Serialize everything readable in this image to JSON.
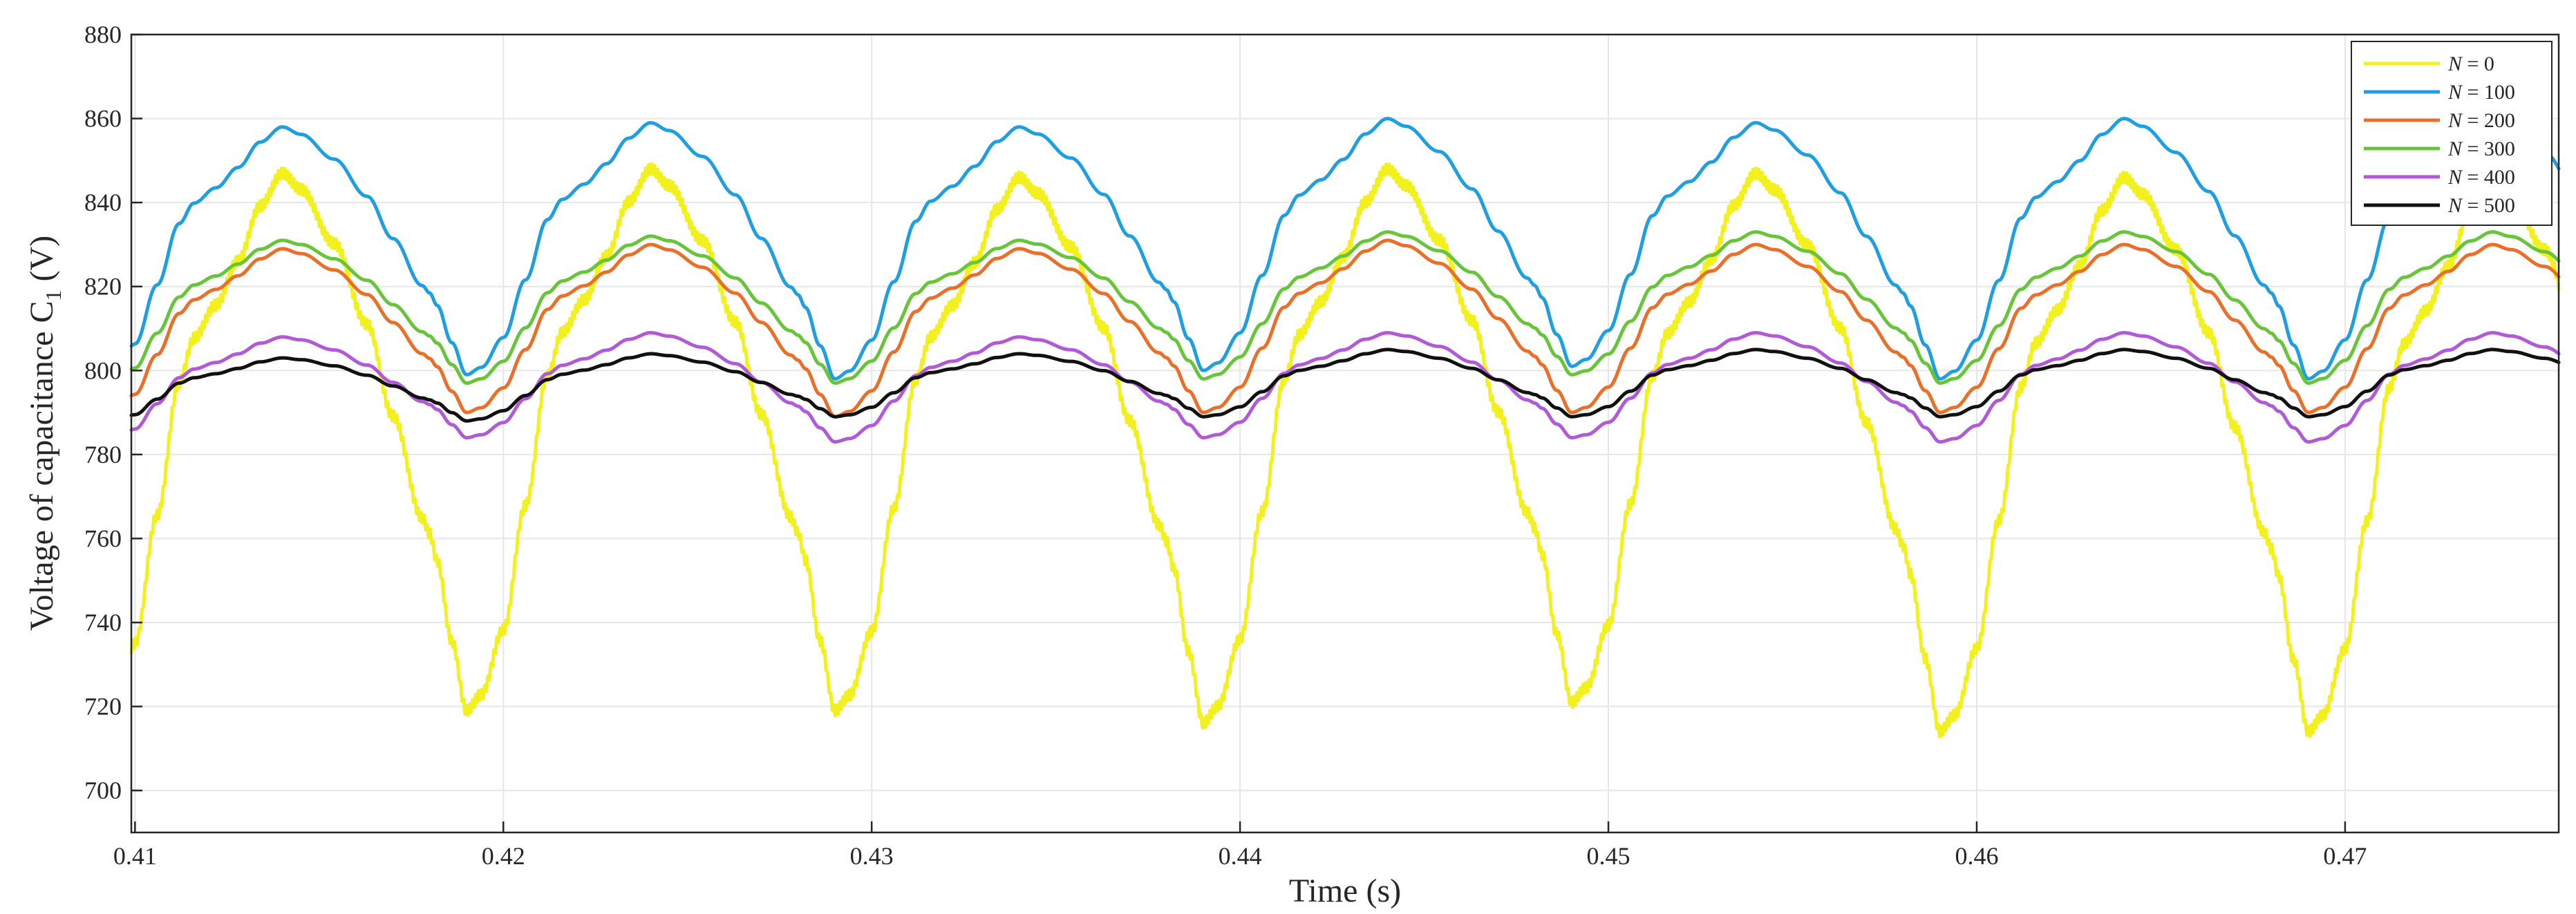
{
  "chart_data": {
    "type": "line",
    "title": "",
    "xlabel": "Time (s)",
    "ylabel": "Voltage of capacitance C",
    "ylabel_subscript": "1",
    "ylabel_unit": " (V)",
    "xlim": [
      0.4099,
      0.4758
    ],
    "ylim": [
      690,
      880
    ],
    "xticks": [
      0.41,
      0.42,
      0.43,
      0.44,
      0.45,
      0.46,
      0.47
    ],
    "xtick_labels": [
      "0.41",
      "0.42",
      "0.43",
      "0.44",
      "0.45",
      "0.46",
      "0.47"
    ],
    "yticks": [
      700,
      720,
      740,
      760,
      780,
      800,
      820,
      840,
      860,
      880
    ],
    "ytick_labels": [
      "700",
      "720",
      "740",
      "760",
      "780",
      "800",
      "820",
      "840",
      "860",
      "880"
    ],
    "grid": true,
    "legend_position": "top-right",
    "period": 0.01,
    "phase_reference_peak": 0.414,
    "series": [
      {
        "name": "N = 0",
        "legend_var": "N",
        "legend_value": "= 0",
        "color": "#f2f01e",
        "peak_values": [
          847,
          848,
          846,
          848,
          847,
          846
        ],
        "valley_values": [
          715,
          719,
          719,
          716,
          721,
          714
        ],
        "noisy": true
      },
      {
        "name": "N = 100",
        "legend_var": "N",
        "legend_value": "= 100",
        "color": "#1f9ee0",
        "peak_values": [
          858,
          859,
          858,
          860,
          859,
          860
        ],
        "valley_values": [
          797,
          799,
          798,
          800,
          801,
          798
        ]
      },
      {
        "name": "N = 200",
        "legend_var": "N",
        "legend_value": "= 200",
        "color": "#e8702a",
        "peak_values": [
          829,
          830,
          829,
          831,
          830,
          830
        ],
        "valley_values": [
          788,
          790,
          789,
          790,
          790,
          790
        ]
      },
      {
        "name": "N = 300",
        "legend_var": "N",
        "legend_value": "= 300",
        "color": "#68c43a",
        "peak_values": [
          831,
          832,
          831,
          833,
          833,
          833
        ],
        "valley_values": [
          795,
          797,
          797,
          798,
          799,
          797
        ]
      },
      {
        "name": "N = 400",
        "legend_var": "N",
        "legend_value": "= 400",
        "color": "#b05ad8",
        "peak_values": [
          808,
          809,
          808,
          809,
          809,
          809
        ],
        "valley_values": [
          782,
          784,
          783,
          784,
          784,
          783
        ]
      },
      {
        "name": "N = 500",
        "legend_var": "N",
        "legend_value": "= 500",
        "color": "#111111",
        "peak_values": [
          803,
          804,
          804,
          805,
          805,
          805
        ],
        "valley_values": [
          787,
          788,
          789,
          789,
          789,
          789
        ]
      }
    ]
  }
}
